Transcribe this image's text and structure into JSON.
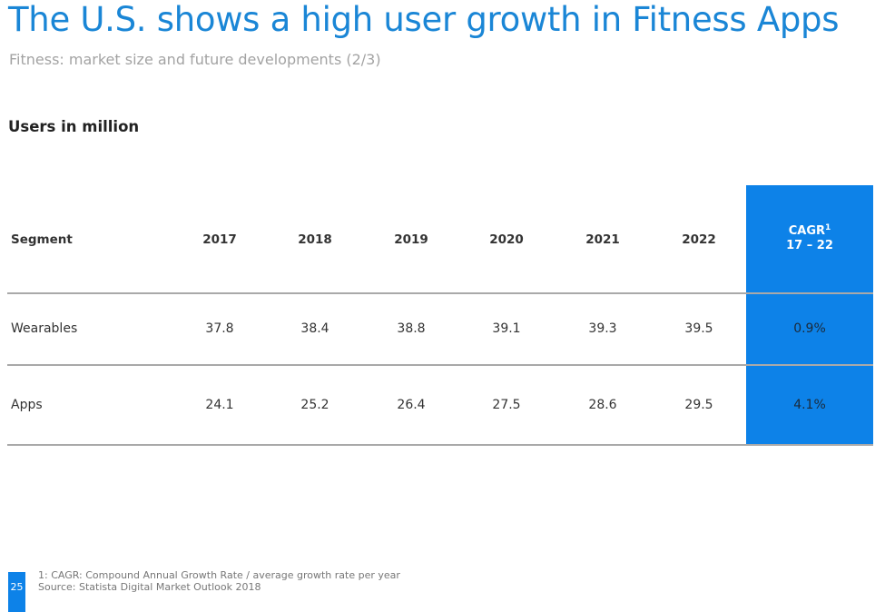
{
  "header": {
    "title": "The U.S. shows a high user growth in Fitness Apps",
    "subtitle": "Fitness: market size and future developments (2/3)"
  },
  "unit_label": "Users in million",
  "table": {
    "segment_header": "Segment",
    "years": [
      "2017",
      "2018",
      "2019",
      "2020",
      "2021",
      "2022"
    ],
    "cagr_header": {
      "label": "CAGR",
      "footnote_marker": "1",
      "range": "17 – 22"
    },
    "rows": [
      {
        "segment": "Wearables",
        "values": [
          "37.8",
          "38.4",
          "38.8",
          "39.1",
          "39.3",
          "39.5"
        ],
        "cagr": "0.9%"
      },
      {
        "segment": "Apps",
        "values": [
          "24.1",
          "25.2",
          "26.4",
          "27.5",
          "28.6",
          "29.5"
        ],
        "cagr": "4.1%"
      }
    ]
  },
  "footer": {
    "page_number": "25",
    "footnote": "1: CAGR: Compound Annual Growth Rate / average growth rate per year",
    "source": "Source: Statista Digital Market Outlook 2018"
  },
  "colors": {
    "title": "#1a86d6",
    "cagr_band": "#0d82e8",
    "rule": "#a9a9a9"
  }
}
